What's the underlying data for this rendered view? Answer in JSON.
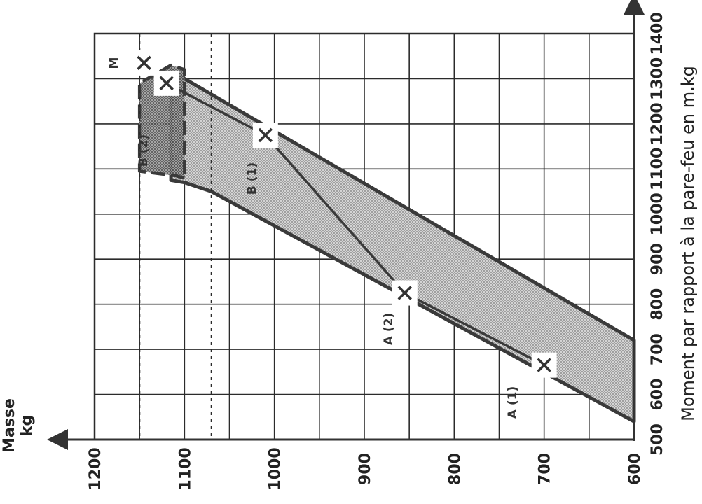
{
  "chart_data": {
    "type": "line",
    "title": "",
    "rotation_degrees": -90,
    "xlabel": "Moment par rapport à la pare-feu en m.kg",
    "ylabel": "Masse kg",
    "ylabel_line1": "Masse",
    "ylabel_line2": "kg",
    "x_ticks": [
      500,
      600,
      700,
      800,
      900,
      1000,
      1100,
      1200,
      1300,
      1400
    ],
    "y_ticks": [
      600,
      700,
      800,
      900,
      1000,
      1100,
      1200
    ],
    "xlim": [
      500,
      1400
    ],
    "ylim": [
      600,
      1200
    ],
    "grid": true,
    "normal_envelope": [
      [
        540,
        600
      ],
      [
        1050,
        1070
      ],
      [
        1070,
        1100
      ],
      [
        1075,
        1115
      ],
      [
        1320,
        1115
      ],
      [
        1300,
        1100
      ],
      [
        720,
        600
      ]
    ],
    "utility_envelope": [
      [
        1080,
        1100
      ],
      [
        1085,
        1110
      ],
      [
        1095,
        1150
      ],
      [
        1290,
        1150
      ],
      [
        1330,
        1115
      ],
      [
        1320,
        1100
      ]
    ],
    "reference_lines": [
      {
        "label": "B (2)",
        "mass": 1150
      },
      {
        "label": "",
        "mass": 1070
      }
    ],
    "points": [
      {
        "label": "A (1)",
        "x": 665,
        "y": 700
      },
      {
        "label": "A (2)",
        "x": 825,
        "y": 855
      },
      {
        "label": "B (1)",
        "x": 1175,
        "y": 1010
      },
      {
        "label": "M",
        "x": 1335,
        "y": 1145
      },
      {
        "label": "",
        "x": 1290,
        "y": 1120
      }
    ],
    "mark_labels": [
      "A (1)",
      "A (2)",
      "B (1)",
      "B (2)",
      "M"
    ],
    "path_A": [
      [
        665,
        700
      ],
      [
        825,
        855
      ]
    ],
    "path_B": [
      [
        825,
        855
      ],
      [
        1175,
        1010
      ],
      [
        1290,
        1120
      ]
    ],
    "colors": {
      "line": "#3a3a3a",
      "grid": "#2b2b2b",
      "shade": "#9a9a9a"
    }
  }
}
